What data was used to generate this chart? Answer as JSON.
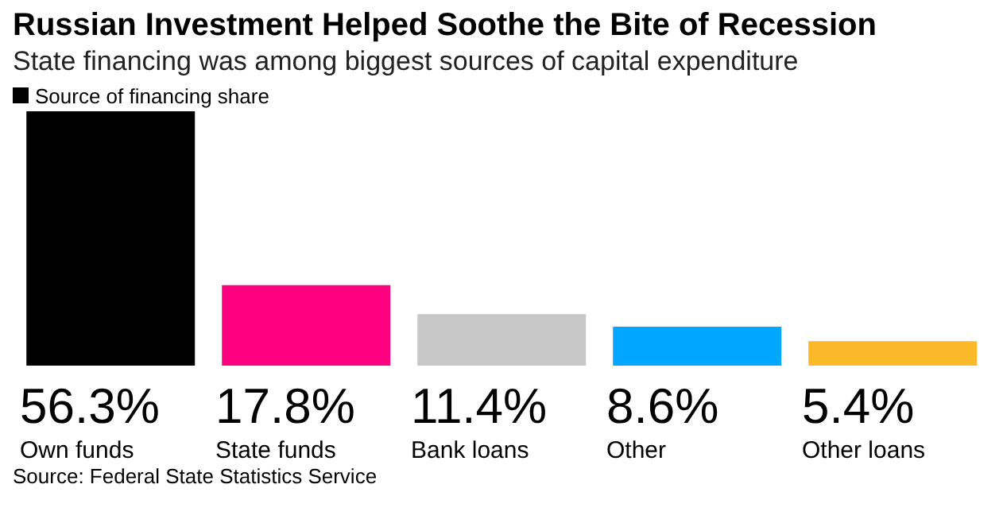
{
  "chart_data": {
    "type": "bar",
    "title": "Russian Investment Helped Soothe the Bite of Recession",
    "subtitle": "State financing was among biggest sources of capital expenditure",
    "categories": [
      "Own funds",
      "State funds",
      "Bank loans",
      "Other",
      "Other loans"
    ],
    "series": [
      {
        "name": "Source of financing share",
        "color": "#000000",
        "colors": [
          "#000000",
          "#ff0080",
          "#c8c8c8",
          "#00a6ff",
          "#fbb829"
        ],
        "values": [
          56.3,
          17.8,
          11.4,
          8.6,
          5.4
        ],
        "value_labels": [
          "56.3%",
          "17.8%",
          "11.4%",
          "8.6%",
          "5.4%"
        ]
      }
    ],
    "legend": "top left",
    "grid": false,
    "annotations": [
      "Source: Federal State Statistics Service"
    ]
  }
}
